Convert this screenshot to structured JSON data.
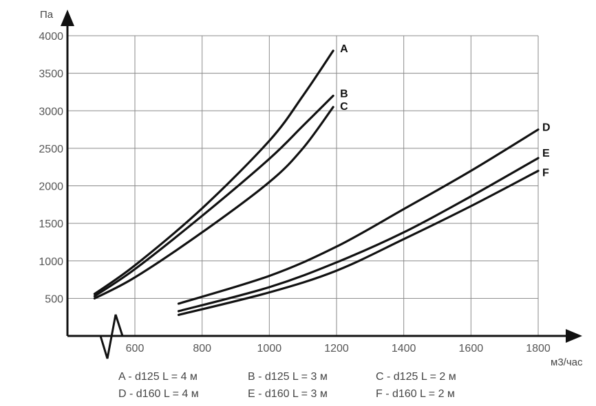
{
  "chart_data": {
    "type": "line",
    "xlabel": "м3/час",
    "ylabel": "Па",
    "xlim": [
      400,
      1800
    ],
    "ylim": [
      0,
      4000
    ],
    "x_ticks": [
      "600",
      "800",
      "1000",
      "1200",
      "1400",
      "1600",
      "1800"
    ],
    "y_ticks": [
      "500",
      "1000",
      "1500",
      "2000",
      "2500",
      "3000",
      "3500",
      "4000"
    ],
    "grid": true,
    "axis_break": true,
    "series": [
      {
        "name": "A",
        "label": "A - d125 L = 4 м",
        "x": [
          480,
          600,
          800,
          1000,
          1100,
          1190
        ],
        "y": [
          560,
          940,
          1700,
          2600,
          3200,
          3800
        ]
      },
      {
        "name": "B",
        "label": "B - d125 L = 3 м",
        "x": [
          480,
          600,
          800,
          1000,
          1100,
          1190
        ],
        "y": [
          530,
          890,
          1600,
          2360,
          2800,
          3200
        ]
      },
      {
        "name": "C",
        "label": "C - d125 L = 2 м",
        "x": [
          480,
          600,
          800,
          1000,
          1100,
          1190
        ],
        "y": [
          500,
          780,
          1380,
          2050,
          2500,
          3050
        ]
      },
      {
        "name": "D",
        "label": "D - d160 L = 4 м",
        "x": [
          730,
          1000,
          1200,
          1400,
          1600,
          1800
        ],
        "y": [
          430,
          800,
          1190,
          1690,
          2200,
          2750
        ]
      },
      {
        "name": "E",
        "label": "E - d160 L = 3 м",
        "x": [
          730,
          1000,
          1200,
          1400,
          1600,
          1800
        ],
        "y": [
          330,
          650,
          980,
          1380,
          1860,
          2370
        ]
      },
      {
        "name": "F",
        "label": "F - d160 L = 2 м",
        "x": [
          730,
          1000,
          1200,
          1400,
          1600,
          1800
        ],
        "y": [
          280,
          580,
          870,
          1290,
          1730,
          2200
        ]
      }
    ]
  }
}
